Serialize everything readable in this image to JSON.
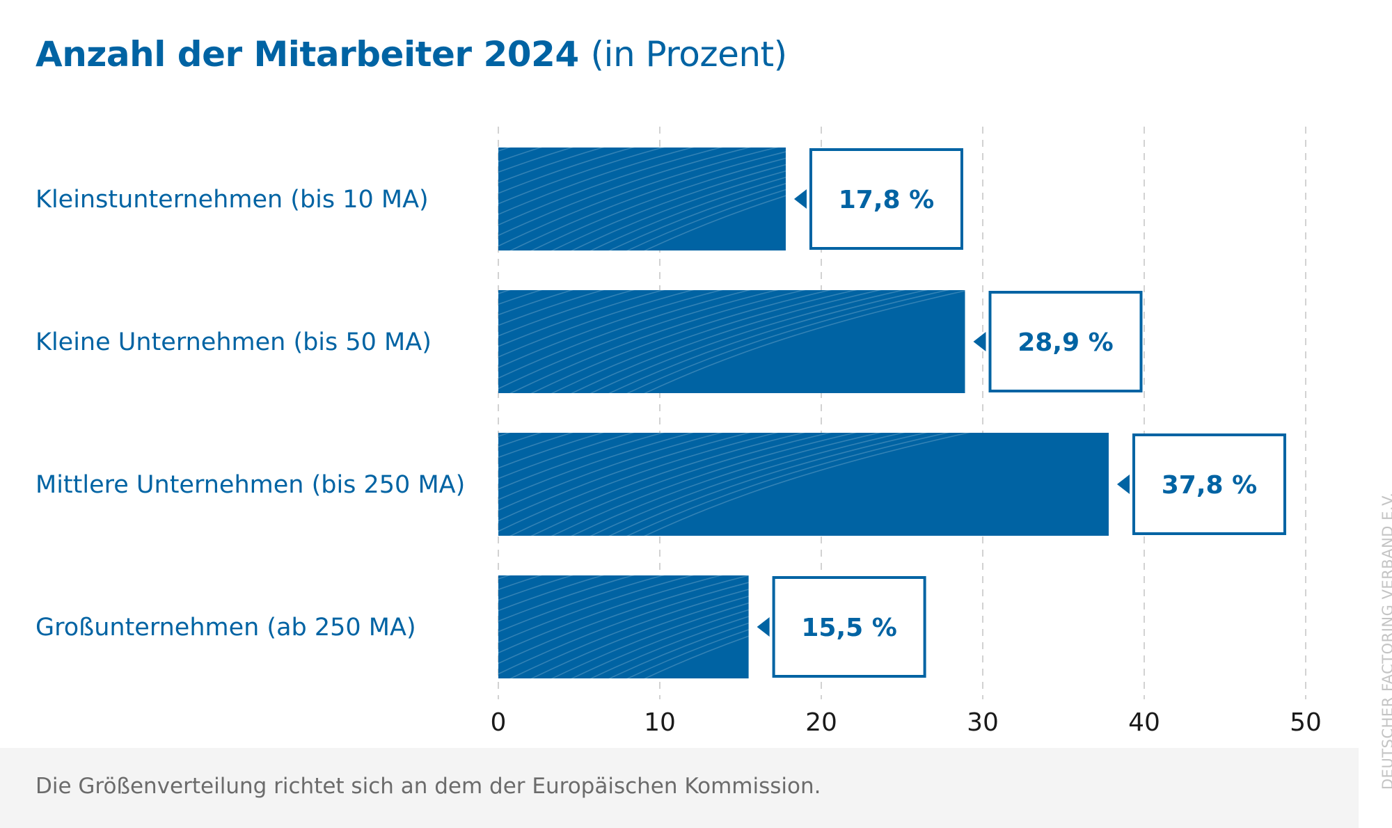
{
  "chart_data": {
    "type": "bar",
    "orientation": "horizontal",
    "title": "Anzahl der Mitarbeiter 2024",
    "subtitle": "(in Prozent)",
    "categories": [
      "Kleinstunternehmen (bis 10 MA)",
      "Kleine Unternehmen (bis 50 MA)",
      "Mittlere Unternehmen (bis 250 MA)",
      "Großunternehmen (ab 250 MA)"
    ],
    "values": [
      17.8,
      28.9,
      37.8,
      15.5
    ],
    "value_labels": [
      "17,8 %",
      "28,9 %",
      "37,8 %",
      "15,5 %"
    ],
    "xlim": [
      0,
      50
    ],
    "xticks": [
      0,
      10,
      20,
      30,
      40,
      50
    ],
    "xtick_labels": [
      "0",
      "10",
      "20",
      "30",
      "40",
      "50"
    ],
    "grid": "vertical dashed",
    "bar_color": "#0063a3",
    "text_color": "#0063a3"
  },
  "footnote": "Die Größenverteilung richtet sich an dem der Europäischen Kommission.",
  "credit": "DEUTSCHER FACTORING VERBAND E.V."
}
